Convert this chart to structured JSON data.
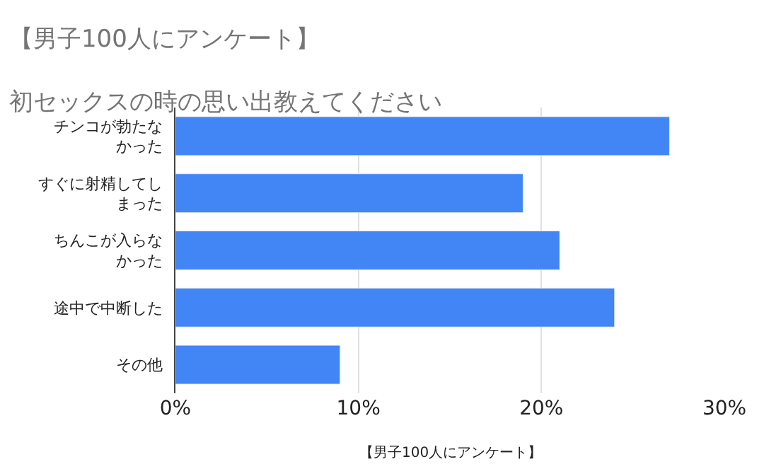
{
  "chart_data": {
    "type": "bar",
    "orientation": "horizontal",
    "title": "【男子100人にアンケート】",
    "subtitle": "初セックスの時の思い出教えてください",
    "categories": [
      "チンコが勃たなかった",
      "すぐに射精してしまった",
      "ちんこが入らなかった",
      "途中で中断した",
      "その他"
    ],
    "values": [
      27,
      19,
      21,
      24,
      9
    ],
    "color": "#4285f4",
    "xlim": [
      0,
      30
    ],
    "xticks": [
      {
        "value": 0,
        "label": "0%"
      },
      {
        "value": 10,
        "label": "10%"
      },
      {
        "value": 20,
        "label": "20%"
      },
      {
        "value": 30,
        "label": "30%"
      }
    ],
    "grid": "x",
    "legend": false,
    "annotations": [
      "【男子100人にアンケート】"
    ]
  }
}
